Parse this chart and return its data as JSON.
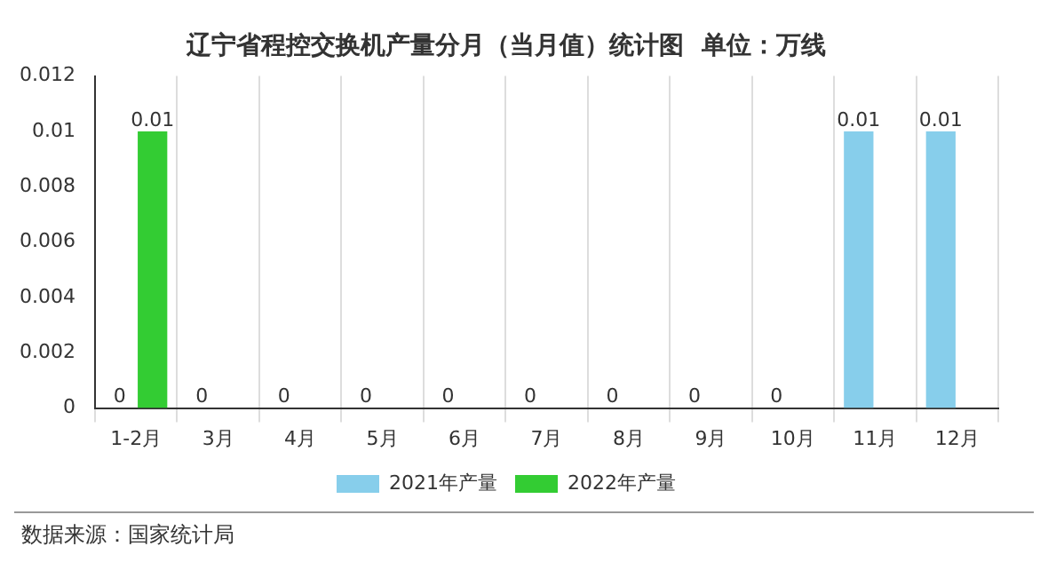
{
  "chart_data": {
    "type": "bar",
    "title": "辽宁省程控交换机产量分月（当月值）统计图  单位：万线",
    "categories": [
      "1-2月",
      "3月",
      "4月",
      "5月",
      "6月",
      "7月",
      "8月",
      "9月",
      "10月",
      "11月",
      "12月"
    ],
    "series": [
      {
        "name": "2021年产量",
        "color": "#87ceeb",
        "values": [
          0,
          0,
          0,
          0,
          0,
          0,
          0,
          0,
          0,
          0.01,
          0.01
        ]
      },
      {
        "name": "2022年产量",
        "color": "#33cc33",
        "values": [
          0.01,
          null,
          null,
          null,
          null,
          null,
          null,
          null,
          null,
          null,
          null
        ]
      }
    ],
    "ylim": [
      0,
      0.012
    ],
    "yticks": [
      0,
      0.002,
      0.004,
      0.006,
      0.008,
      0.01,
      0.012
    ],
    "grid": "x",
    "legend": "bottom",
    "data_labels": true,
    "annotations": [
      "数据来源：国家统计局"
    ]
  }
}
